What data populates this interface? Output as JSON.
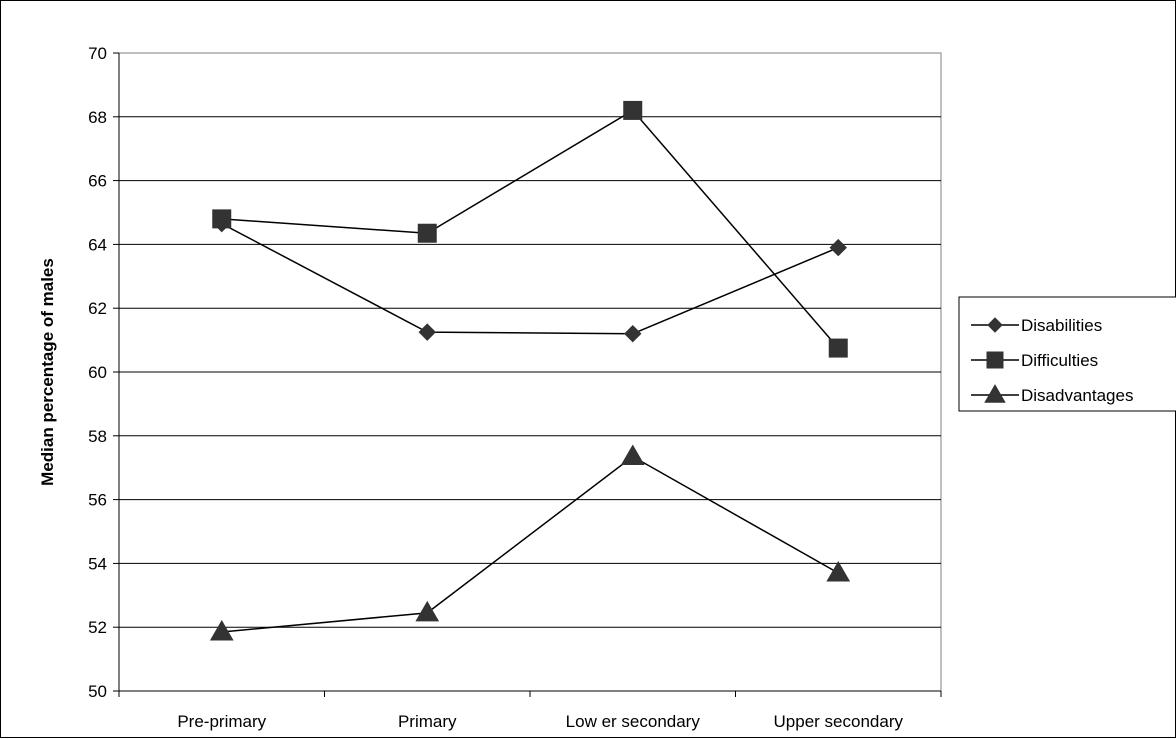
{
  "chart_data": {
    "type": "line",
    "title": "",
    "xlabel": "",
    "ylabel": "Median percentage of males",
    "ylim": [
      50,
      70
    ],
    "ytick_step": 2,
    "categories": [
      "Pre-primary",
      "Primary",
      "Low er secondary",
      "Upper secondary"
    ],
    "series": [
      {
        "name": "Disabilities",
        "marker": "diamond",
        "values": [
          64.65,
          61.25,
          61.2,
          63.9
        ]
      },
      {
        "name": "Difficulties",
        "marker": "square",
        "values": [
          64.8,
          64.35,
          68.2,
          60.75
        ]
      },
      {
        "name": "Disadvantages",
        "marker": "triangle",
        "values": [
          51.85,
          52.45,
          57.35,
          53.7
        ]
      }
    ],
    "grid": "horizontal",
    "legend_position": "right",
    "colors": {
      "line": "#000000",
      "marker": "#333333",
      "grid": "#000000",
      "plot_border": "#808080"
    }
  }
}
